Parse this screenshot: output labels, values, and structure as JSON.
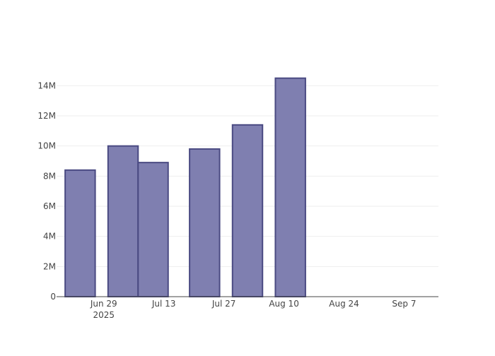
{
  "chart_data": {
    "type": "bar",
    "title": "",
    "xlabel": "",
    "ylabel": "",
    "x_axis": {
      "type": "date",
      "range": [
        "2025-06-18",
        "2025-09-15"
      ],
      "ticks": [
        {
          "date": "2025-06-29",
          "label": "Jun 29",
          "sublabel": "2025"
        },
        {
          "date": "2025-07-13",
          "label": "Jul 13",
          "sublabel": ""
        },
        {
          "date": "2025-07-27",
          "label": "Jul 27",
          "sublabel": ""
        },
        {
          "date": "2025-08-10",
          "label": "Aug 10",
          "sublabel": ""
        },
        {
          "date": "2025-08-24",
          "label": "Aug 24",
          "sublabel": ""
        },
        {
          "date": "2025-09-07",
          "label": "Sep 7",
          "sublabel": ""
        }
      ]
    },
    "y_axis": {
      "range": [
        0,
        15000000
      ],
      "ticks": [
        {
          "value": 0,
          "label": "0"
        },
        {
          "value": 2000000,
          "label": "2M"
        },
        {
          "value": 4000000,
          "label": "4M"
        },
        {
          "value": 6000000,
          "label": "6M"
        },
        {
          "value": 8000000,
          "label": "8M"
        },
        {
          "value": 10000000,
          "label": "10M"
        },
        {
          "value": 12000000,
          "label": "12M"
        },
        {
          "value": 14000000,
          "label": "14M"
        }
      ]
    },
    "grid": true,
    "legend": false,
    "bars": [
      {
        "start": "2025-06-20",
        "end": "2025-06-26",
        "value": 8400000
      },
      {
        "start": "2025-06-30",
        "end": "2025-07-06",
        "value": 10000000
      },
      {
        "start": "2025-07-07",
        "end": "2025-07-13",
        "value": 8900000
      },
      {
        "start": "2025-07-19",
        "end": "2025-07-25",
        "value": 9800000
      },
      {
        "start": "2025-07-29",
        "end": "2025-08-04",
        "value": 11400000
      },
      {
        "start": "2025-08-08",
        "end": "2025-08-14",
        "value": 14500000
      }
    ],
    "colors": {
      "bar_fill": "#7f7fb0",
      "bar_stroke": "#4a4a82",
      "grid": "#eeeeee",
      "axis": "#444444"
    }
  }
}
